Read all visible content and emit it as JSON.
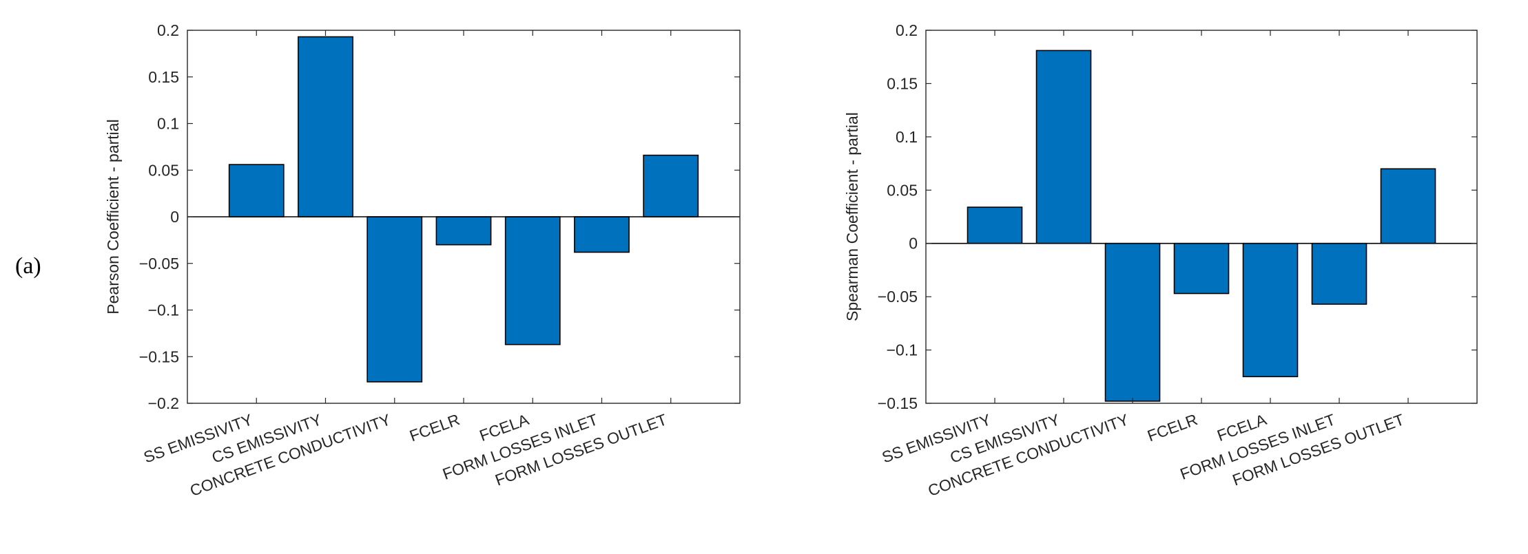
{
  "panel_label": "(a)",
  "chart_data": [
    {
      "type": "bar",
      "title": "",
      "xlabel": "",
      "ylabel": "Pearson Coefficient - partial",
      "categories": [
        "SS EMISSIVITY",
        "CS EMISSIVITY",
        "CONCRETE CONDUCTIVITY",
        "FCELR",
        "FCELA",
        "FORM LOSSES INLET",
        "FORM LOSSES OUTLET"
      ],
      "values": [
        0.056,
        0.193,
        -0.177,
        -0.03,
        -0.137,
        -0.038,
        0.066
      ],
      "ylim": [
        -0.2,
        0.2
      ],
      "yticks": [
        -0.2,
        -0.15,
        -0.1,
        -0.05,
        0,
        0.05,
        0.1,
        0.15,
        0.2
      ],
      "ytick_labels": [
        "−0.2",
        "−0.15",
        "−0.1",
        "−0.05",
        "0",
        "0.05",
        "0.1",
        "0.15",
        "0.2"
      ],
      "bar_color": "#0072BD",
      "grid": false,
      "legend": "none"
    },
    {
      "type": "bar",
      "title": "",
      "xlabel": "",
      "ylabel": "Spearman Coefficient - partial",
      "categories": [
        "SS EMISSIVITY",
        "CS EMISSIVITY",
        "CONCRETE CONDUCTIVITY",
        "FCELR",
        "FCELA",
        "FORM LOSSES INLET",
        "FORM LOSSES OUTLET"
      ],
      "values": [
        0.034,
        0.181,
        -0.148,
        -0.047,
        -0.125,
        -0.057,
        0.07
      ],
      "ylim": [
        -0.15,
        0.2
      ],
      "yticks": [
        -0.15,
        -0.1,
        -0.05,
        0,
        0.05,
        0.1,
        0.15,
        0.2
      ],
      "ytick_labels": [
        "−0.15",
        "−0.1",
        "−0.05",
        "0",
        "0.05",
        "0.1",
        "0.15",
        "0.2"
      ],
      "bar_color": "#0072BD",
      "grid": false,
      "legend": "none"
    }
  ]
}
